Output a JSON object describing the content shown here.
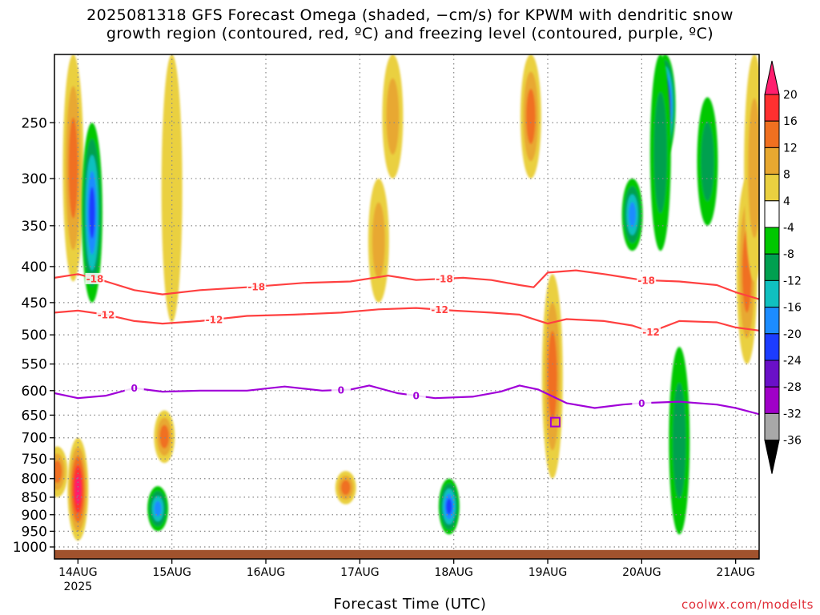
{
  "title": {
    "line1": "2025081318 GFS Forecast Omega (shaded, −cm/s) for KPWM with dendritic snow",
    "line2": "growth region (contoured, red, ºC) and freezing level (contoured, purple, ºC)"
  },
  "credit": "coolwx.com/modelts",
  "colors": {
    "dendritic_contour": "#ff4040",
    "freezing_contour": "#a000d8",
    "ground": "#a0522d",
    "gridline": "#888888"
  },
  "chart_data": {
    "type": "heatmap",
    "xlabel": "Forecast Time (UTC)",
    "ylabel": "",
    "x_ticks": [
      {
        "label": "14AUG",
        "sub": "2025",
        "day": 0
      },
      {
        "label": "15AUG",
        "day": 1
      },
      {
        "label": "16AUG",
        "day": 2
      },
      {
        "label": "17AUG",
        "day": 3
      },
      {
        "label": "18AUG",
        "day": 4
      },
      {
        "label": "19AUG",
        "day": 5
      },
      {
        "label": "20AUG",
        "day": 6
      },
      {
        "label": "21AUG",
        "day": 7
      }
    ],
    "xlim_days": [
      -0.25,
      7.25
    ],
    "y_axis": {
      "type": "log-pressure",
      "units": "hPa",
      "ylim": [
        1040,
        200
      ],
      "ticks": [
        250,
        300,
        350,
        400,
        450,
        500,
        550,
        600,
        650,
        700,
        750,
        800,
        850,
        900,
        950,
        1000
      ]
    },
    "colorbar": {
      "labels": [
        20,
        16,
        12,
        8,
        4,
        -4,
        -8,
        -12,
        -16,
        -20,
        -24,
        -28,
        -32,
        -36
      ],
      "colors": [
        "#ff1e6e",
        "#ff3030",
        "#f07020",
        "#e8a830",
        "#ead040",
        "#ffffff",
        "#00c800",
        "#00a050",
        "#10c0c0",
        "#1c8cff",
        "#1c3cff",
        "#6a10c8",
        "#a000c8",
        "#a8a8a8",
        "#000000"
      ]
    },
    "grid": true,
    "omega_features": [
      {
        "day": -0.05,
        "p_top": 200,
        "p_bot": 420,
        "value": 10
      },
      {
        "day": 0.0,
        "p_top": 700,
        "p_bot": 980,
        "value": 18
      },
      {
        "day": 0.15,
        "p_top": 250,
        "p_bot": 450,
        "value": -18
      },
      {
        "day": -0.22,
        "p_top": 720,
        "p_bot": 850,
        "value": 10
      },
      {
        "day": 0.92,
        "p_top": 640,
        "p_bot": 760,
        "value": 10
      },
      {
        "day": 0.85,
        "p_top": 820,
        "p_bot": 950,
        "value": -16
      },
      {
        "day": 2.85,
        "p_top": 780,
        "p_bot": 870,
        "value": 12
      },
      {
        "day": 3.35,
        "p_top": 200,
        "p_bot": 300,
        "value": 8
      },
      {
        "day": 3.95,
        "p_top": 800,
        "p_bot": 960,
        "value": -20
      },
      {
        "day": 5.05,
        "p_top": 410,
        "p_bot": 800,
        "value": 10
      },
      {
        "day": 4.82,
        "p_top": 200,
        "p_bot": 300,
        "value": 12
      },
      {
        "day": 6.25,
        "p_top": 200,
        "p_bot": 280,
        "value": -30
      },
      {
        "day": 6.2,
        "p_top": 200,
        "p_bot": 380,
        "value": -8
      },
      {
        "day": 5.9,
        "p_top": 300,
        "p_bot": 380,
        "value": -16
      },
      {
        "day": 6.4,
        "p_top": 520,
        "p_bot": 960,
        "value": -8
      },
      {
        "day": 7.12,
        "p_top": 300,
        "p_bot": 550,
        "value": 12
      },
      {
        "day": 7.2,
        "p_top": 200,
        "p_bot": 420,
        "value": 6
      },
      {
        "day": 6.7,
        "p_top": 230,
        "p_bot": 350,
        "value": -6
      },
      {
        "day": 3.2,
        "p_top": 300,
        "p_bot": 450,
        "value": 6
      },
      {
        "day": 1.0,
        "p_top": 200,
        "p_bot": 480,
        "value": 5
      }
    ],
    "contours": [
      {
        "name": "-18",
        "color_key": "dendritic_contour",
        "label_days": [
          0.18,
          1.9,
          3.9,
          6.05
        ],
        "points": [
          [
            -0.25,
            415
          ],
          [
            0.0,
            410
          ],
          [
            0.3,
            420
          ],
          [
            0.6,
            432
          ],
          [
            0.9,
            438
          ],
          [
            1.3,
            432
          ],
          [
            1.8,
            428
          ],
          [
            2.4,
            422
          ],
          [
            2.9,
            420
          ],
          [
            3.3,
            412
          ],
          [
            3.6,
            418
          ],
          [
            4.1,
            415
          ],
          [
            4.4,
            418
          ],
          [
            4.7,
            425
          ],
          [
            4.85,
            428
          ],
          [
            5.0,
            408
          ],
          [
            5.3,
            405
          ],
          [
            5.6,
            410
          ],
          [
            6.0,
            418
          ],
          [
            6.4,
            420
          ],
          [
            6.8,
            425
          ],
          [
            7.0,
            435
          ],
          [
            7.25,
            445
          ]
        ]
      },
      {
        "name": "-12",
        "color_key": "dendritic_contour",
        "label_days": [
          0.3,
          1.45,
          3.85,
          6.1
        ],
        "points": [
          [
            -0.25,
            465
          ],
          [
            0.0,
            462
          ],
          [
            0.3,
            468
          ],
          [
            0.6,
            478
          ],
          [
            0.9,
            482
          ],
          [
            1.3,
            478
          ],
          [
            1.8,
            470
          ],
          [
            2.3,
            468
          ],
          [
            2.8,
            465
          ],
          [
            3.2,
            460
          ],
          [
            3.6,
            458
          ],
          [
            4.0,
            462
          ],
          [
            4.4,
            465
          ],
          [
            4.7,
            468
          ],
          [
            5.0,
            482
          ],
          [
            5.2,
            475
          ],
          [
            5.6,
            478
          ],
          [
            5.9,
            485
          ],
          [
            6.1,
            495
          ],
          [
            6.4,
            478
          ],
          [
            6.8,
            480
          ],
          [
            7.0,
            488
          ],
          [
            7.25,
            493
          ]
        ]
      },
      {
        "name": "0",
        "color_key": "freezing_contour",
        "label_days": [
          0.6,
          2.8,
          3.6,
          6.0
        ],
        "points": [
          [
            -0.25,
            605
          ],
          [
            0.0,
            615
          ],
          [
            0.3,
            610
          ],
          [
            0.6,
            595
          ],
          [
            0.9,
            602
          ],
          [
            1.3,
            600
          ],
          [
            1.8,
            600
          ],
          [
            2.2,
            592
          ],
          [
            2.6,
            600
          ],
          [
            2.9,
            598
          ],
          [
            3.1,
            590
          ],
          [
            3.4,
            605
          ],
          [
            3.8,
            615
          ],
          [
            4.2,
            612
          ],
          [
            4.5,
            602
          ],
          [
            4.7,
            590
          ],
          [
            4.9,
            598
          ],
          [
            5.2,
            625
          ],
          [
            5.5,
            635
          ],
          [
            5.8,
            628
          ],
          [
            6.0,
            625
          ],
          [
            6.4,
            622
          ],
          [
            6.8,
            628
          ],
          [
            7.0,
            635
          ],
          [
            7.25,
            648
          ]
        ]
      }
    ],
    "marker": {
      "day": 5.08,
      "p": 665,
      "color_key": "freezing_contour"
    }
  }
}
